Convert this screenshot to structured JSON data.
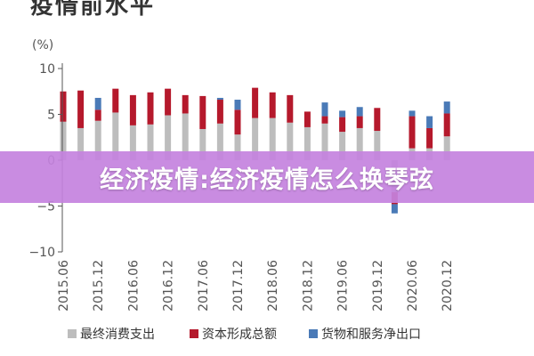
{
  "page": {
    "title": "疫情前水平",
    "overlay_text": "经济疫情:经济疫情怎么换琴弦"
  },
  "chart_data": {
    "type": "bar",
    "stacked": true,
    "unit_label": "(%)",
    "ylim": [
      -10,
      10
    ],
    "yticks": [
      10,
      5,
      0,
      -5,
      -10
    ],
    "ytick_labels": [
      "10",
      "5",
      "0",
      "−5",
      "−10"
    ],
    "grid": false,
    "legend_position": "bottom",
    "categories": [
      "2015.06",
      "2015.09",
      "2015.12",
      "2016.03",
      "2016.06",
      "2016.09",
      "2016.12",
      "2017.03",
      "2017.06",
      "2017.09",
      "2017.12",
      "2018.03",
      "2018.06",
      "2018.09",
      "2018.12",
      "2019.03",
      "2019.06",
      "2019.09",
      "2019.12",
      "2020.03",
      "2020.06",
      "2020.09",
      "2020.12"
    ],
    "xtick_labels": [
      "2015.06",
      "",
      "2015.12",
      "",
      "2016.06",
      "",
      "2016.12",
      "",
      "2017.06",
      "",
      "2017.12",
      "",
      "2018.06",
      "",
      "2018.12",
      "",
      "2019.06",
      "",
      "2019.12",
      "",
      "2020.06",
      "",
      "2020.12"
    ],
    "series": [
      {
        "name": "最终消费支出",
        "color": "#bdbdbd",
        "values": [
          4.2,
          3.5,
          4.3,
          5.2,
          3.8,
          3.9,
          4.9,
          5.1,
          3.4,
          4.0,
          2.8,
          4.6,
          4.6,
          4.1,
          3.6,
          4.0,
          3.1,
          3.5,
          3.2,
          -3.5,
          1.3,
          1.3,
          2.6
        ]
      },
      {
        "name": "资本形成总额",
        "color": "#b5192c",
        "values": [
          3.3,
          4.1,
          1.2,
          2.6,
          3.3,
          3.5,
          2.9,
          2.0,
          3.6,
          2.6,
          2.7,
          3.3,
          2.8,
          3.0,
          1.7,
          0.8,
          1.6,
          1.3,
          2.5,
          -1.3,
          3.5,
          2.2,
          2.5
        ]
      },
      {
        "name": "货物和服务净出口",
        "color": "#4a7ab7",
        "values": [
          0.0,
          0.0,
          1.3,
          0.0,
          0.0,
          0.0,
          0.0,
          0.0,
          0.0,
          0.2,
          1.1,
          0.0,
          0.0,
          0.0,
          0.0,
          1.5,
          0.7,
          1.0,
          0.0,
          -1.0,
          0.6,
          1.3,
          1.3
        ]
      }
    ]
  }
}
